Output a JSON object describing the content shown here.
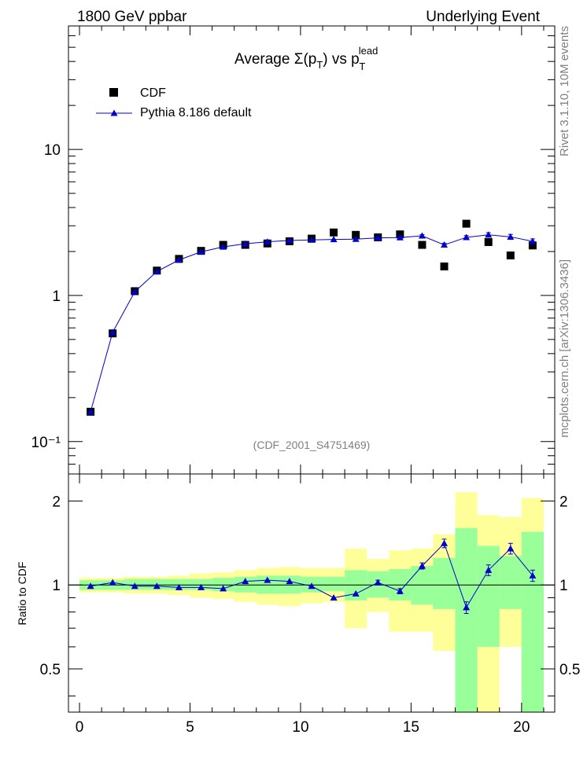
{
  "header": {
    "left": "1800 GeV ppbar",
    "right": "Underlying Event"
  },
  "side": {
    "top": "Rivet 3.1.10, 10M events",
    "bottom": "mcplots.cern.ch [arXiv:1306.3436]"
  },
  "title": {
    "prefix": "Average ",
    "sigma": "Σ(p",
    "sub_t1": "T",
    "mid": ") vs p",
    "sup_lead": "lead",
    "sub_t2": "T"
  },
  "analysis_label": "(CDF_2001_S4751469)",
  "legend": {
    "data_label": "CDF",
    "mc_label": "Pythia 8.186 default"
  },
  "ratio_ylabel": "Ratio to CDF",
  "colors": {
    "mc": "#0000cc",
    "band_green": "#99ff99",
    "band_yellow": "#ffff99",
    "data": "#000000"
  },
  "chart_data": [
    {
      "type": "scatter",
      "panel": "main",
      "yscale": "log",
      "ylim": [
        0.06,
        70
      ],
      "xlim": [
        -0.5,
        21.5
      ],
      "y_ticks": [
        {
          "value": 0.1,
          "label": "10⁻¹"
        },
        {
          "value": 1,
          "label": "1"
        },
        {
          "value": 10,
          "label": "10"
        }
      ],
      "series": [
        {
          "name": "CDF",
          "marker": "square",
          "x": [
            0.5,
            1.5,
            2.5,
            3.5,
            4.5,
            5.5,
            6.5,
            7.5,
            8.5,
            9.5,
            10.5,
            11.5,
            12.5,
            13.5,
            14.5,
            15.5,
            16.5,
            17.5,
            18.5,
            19.5,
            20.5
          ],
          "y": [
            0.16,
            0.55,
            1.07,
            1.48,
            1.78,
            2.02,
            2.22,
            2.22,
            2.27,
            2.35,
            2.45,
            2.7,
            2.6,
            2.5,
            2.62,
            2.22,
            1.58,
            3.1,
            2.32,
            1.88,
            2.2
          ]
        },
        {
          "name": "Pythia 8.186 default",
          "marker": "triangle",
          "x": [
            0.5,
            1.5,
            2.5,
            3.5,
            4.5,
            5.5,
            6.5,
            7.5,
            8.5,
            9.5,
            10.5,
            11.5,
            12.5,
            13.5,
            14.5,
            15.5,
            16.5,
            17.5,
            18.5,
            19.5,
            20.5
          ],
          "y": [
            0.16,
            0.56,
            1.06,
            1.46,
            1.75,
            1.99,
            2.15,
            2.26,
            2.33,
            2.38,
            2.4,
            2.42,
            2.43,
            2.48,
            2.49,
            2.56,
            2.22,
            2.5,
            2.6,
            2.52,
            2.35
          ],
          "yerr": [
            0,
            0,
            0,
            0,
            0,
            0,
            0,
            0,
            0,
            0,
            0,
            0,
            0,
            0,
            0.04,
            0.05,
            0.06,
            0.07,
            0.09,
            0.1,
            0.09
          ]
        }
      ]
    },
    {
      "type": "line",
      "panel": "ratio",
      "yscale": "log",
      "ylim": [
        0.35,
        2.5
      ],
      "xlim": [
        -0.5,
        21.5
      ],
      "ylabel": "Ratio to CDF",
      "x_ticks": [
        0,
        5,
        10,
        15,
        20
      ],
      "y_ticks": [
        {
          "value": 0.5,
          "label": "0.5"
        },
        {
          "value": 1,
          "label": "1"
        },
        {
          "value": 2,
          "label": "2"
        }
      ],
      "bands": {
        "x_edges": [
          0,
          1,
          2,
          3,
          4,
          5,
          6,
          7,
          8,
          9,
          10,
          11,
          12,
          13,
          14,
          15,
          16,
          17,
          18,
          19,
          20,
          21
        ],
        "green_lo": [
          0.96,
          0.96,
          0.96,
          0.96,
          0.96,
          0.96,
          0.95,
          0.94,
          0.93,
          0.93,
          0.94,
          0.95,
          0.88,
          0.9,
          0.88,
          0.85,
          0.82,
          0.35,
          0.6,
          0.82,
          0.35
        ],
        "green_hi": [
          1.04,
          1.04,
          1.05,
          1.05,
          1.05,
          1.05,
          1.06,
          1.07,
          1.08,
          1.08,
          1.07,
          1.07,
          1.13,
          1.12,
          1.14,
          1.17,
          1.25,
          1.6,
          1.38,
          1.27,
          1.55
        ],
        "yellow_lo": [
          0.94,
          0.94,
          0.93,
          0.93,
          0.92,
          0.9,
          0.89,
          0.87,
          0.85,
          0.84,
          0.86,
          0.87,
          0.7,
          0.8,
          0.68,
          0.68,
          0.58,
          0.35,
          0.35,
          0.6,
          0.35
        ],
        "yellow_hi": [
          1.06,
          1.06,
          1.07,
          1.07,
          1.08,
          1.1,
          1.11,
          1.13,
          1.15,
          1.16,
          1.15,
          1.15,
          1.35,
          1.24,
          1.33,
          1.35,
          1.52,
          2.15,
          1.78,
          1.75,
          2.05
        ]
      },
      "series": [
        {
          "name": "Pythia 8.186 default",
          "x": [
            0.5,
            1.5,
            2.5,
            3.5,
            4.5,
            5.5,
            6.5,
            7.5,
            8.5,
            9.5,
            10.5,
            11.5,
            12.5,
            13.5,
            14.5,
            15.5,
            16.5,
            17.5,
            18.5,
            19.5,
            20.5
          ],
          "y": [
            0.99,
            1.02,
            0.99,
            0.99,
            0.98,
            0.98,
            0.97,
            1.03,
            1.04,
            1.03,
            0.99,
            0.9,
            0.93,
            1.02,
            0.95,
            1.17,
            1.41,
            0.83,
            1.13,
            1.35,
            1.08
          ],
          "yerr": [
            0,
            0,
            0,
            0,
            0,
            0,
            0,
            0,
            0,
            0,
            0,
            0,
            0,
            0.02,
            0.02,
            0.03,
            0.05,
            0.04,
            0.05,
            0.06,
            0.05
          ]
        }
      ]
    }
  ]
}
